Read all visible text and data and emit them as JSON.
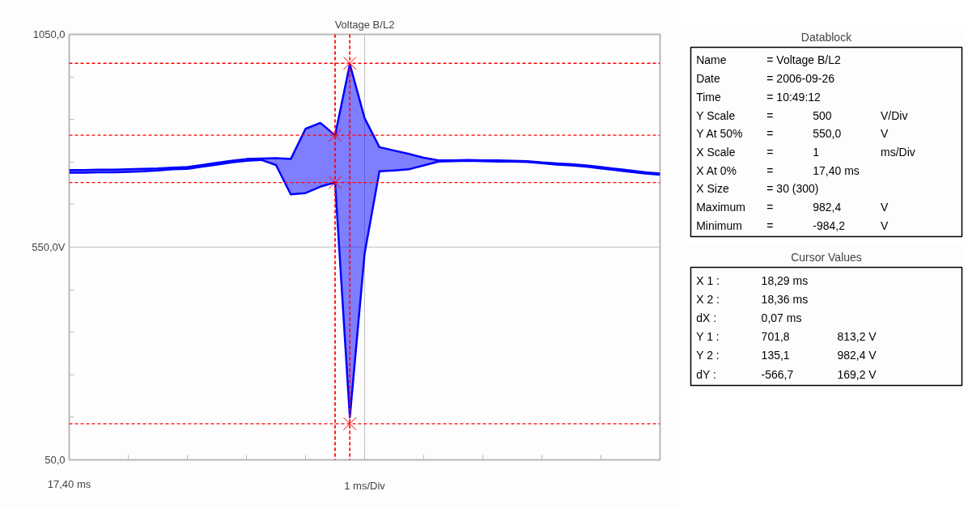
{
  "chart_data": [
    {
      "type": "area",
      "title": "Voltage B/L2",
      "categories": [
        "17,40 ms",
        null,
        null,
        null,
        null,
        null,
        null,
        null,
        null,
        null,
        null,
        null,
        null,
        null,
        null,
        null,
        null,
        null,
        null,
        null,
        null,
        null,
        null,
        null,
        null,
        null,
        null,
        null,
        null,
        null,
        null,
        null,
        null,
        null,
        null,
        null,
        null,
        null,
        null,
        null,
        null
      ],
      "series": [
        {
          "type": "line",
          "color": "#0000ff",
          "values": [
            725,
            725,
            726,
            726,
            727,
            728,
            730,
            733,
            734,
            739,
            744,
            749,
            753,
            755,
            743,
            674,
            677,
            692,
            702,
            150,
            535,
            728,
            730,
            733,
            742,
            751,
            752,
            753,
            752,
            751,
            751,
            750,
            747,
            744,
            742,
            739,
            735,
            731,
            727,
            723,
            720
          ]
        },
        {
          "type": "area",
          "color": "#0000ff",
          "values": [
            731,
            731,
            732,
            732,
            733,
            734,
            735,
            737,
            738,
            743,
            748,
            753,
            757,
            758,
            759,
            757,
            828,
            842,
            813,
            980,
            853,
            785,
            777,
            769,
            760,
            754,
            754,
            755,
            754,
            754,
            753,
            752,
            749,
            747,
            745,
            742,
            738,
            734,
            730,
            726,
            723
          ]
        },
        {
          "type": "scatter",
          "color": "#ff0000",
          "marker": "cross",
          "values": [
            null,
            null,
            null,
            null,
            null,
            null,
            null,
            null,
            null,
            null,
            null,
            null,
            null,
            null,
            null,
            null,
            null,
            null,
            813,
            982,
            null,
            null,
            null,
            null,
            null,
            null,
            null,
            null,
            null,
            null,
            null,
            null,
            null,
            null,
            null,
            null,
            null,
            null,
            null,
            null,
            null
          ]
        },
        {
          "type": "scatter",
          "color": "#ff0000",
          "marker": "cross",
          "values": [
            null,
            null,
            null,
            null,
            null,
            null,
            null,
            null,
            null,
            null,
            null,
            null,
            null,
            null,
            null,
            null,
            null,
            null,
            702,
            135,
            null,
            null,
            null,
            null,
            null,
            null,
            null,
            null,
            null,
            null,
            null,
            null,
            null,
            null,
            null,
            null,
            null,
            null,
            null,
            null,
            null
          ]
        }
      ],
      "xlabel": "1 ms/Div",
      "ylim": [
        50,
        1050
      ],
      "yticks": [
        {
          "value": 50,
          "label": "50,0"
        },
        {
          "value": 150,
          "label": null
        },
        {
          "value": 250,
          "label": null
        },
        {
          "value": 350,
          "label": null
        },
        {
          "value": 450,
          "label": null
        },
        {
          "value": 550,
          "label": "550,0V"
        },
        {
          "value": 650,
          "label": null
        },
        {
          "value": 750,
          "label": null
        },
        {
          "value": 850,
          "label": null
        },
        {
          "value": 950,
          "label": null
        },
        {
          "value": 1050,
          "label": "1050,0"
        }
      ],
      "grid": true,
      "ref_lines": [
        {
          "axis": "y",
          "value": 982,
          "color": "#ff0000",
          "line_style": "dashed"
        },
        {
          "axis": "y",
          "value": 813,
          "color": "#ff0000",
          "line_style": "dashed"
        },
        {
          "axis": "y",
          "value": 702,
          "color": "#ff0000",
          "line_style": "dashed"
        },
        {
          "axis": "y",
          "value": 135,
          "color": "#ff0000",
          "line_style": "dashed"
        }
      ]
    },
    {
      "type": "other",
      "title": "Datablock",
      "annotations": [
        "Name\t= Voltage B/L2",
        "Date\t= 2006-09-26",
        "Time\t= 10:49:12",
        "Y Scale\t=\t500\tV/Div",
        "Y At 50%\t=\t550,0\tV",
        "X Scale\t=\t1\tms/Div",
        "X At 0%\t=\t17,40 ms",
        "X Size\t= 30 (300)",
        "Maximum\t=\t982,4\tV",
        "Minimum\t=\t-984,2\tV"
      ]
    },
    {
      "type": "other",
      "title": "Cursor Values",
      "annotations": [
        "X 1 :\t18,29 ms",
        "X 2 :\t18,36 ms",
        "dX :\t0,07 ms",
        "Y 1 :\t701,8\t813,2 V",
        "Y 2 :\t135,1\t982,4 V",
        "dY :\t-566,7\t169,2 V"
      ]
    }
  ]
}
